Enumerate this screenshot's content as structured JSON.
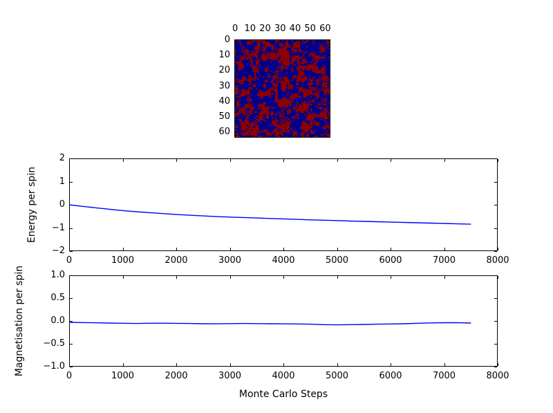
{
  "figure": {
    "background": "#ffffff",
    "text_color": "#000000"
  },
  "lattice": {
    "grid_size": 64,
    "seed": 1337,
    "smooth_passes": 2,
    "speckle": 0.06,
    "colors": {
      "spin_up": "#8c0000",
      "spin_down": "#00008c"
    },
    "xtick_vals": [
      0,
      10,
      20,
      30,
      40,
      50,
      60
    ],
    "xtick_labels": [
      "0",
      "10",
      "20",
      "30",
      "40",
      "50",
      "60"
    ],
    "ytick_vals": [
      0,
      10,
      20,
      30,
      40,
      50,
      60
    ],
    "ytick_labels": [
      "0",
      "10",
      "20",
      "30",
      "40",
      "50",
      "60"
    ]
  },
  "chart_data": [
    {
      "type": "heatmap",
      "name": "spin-lattice",
      "description": "64x64 Ising spin configuration; dark red cells = spin up, dark blue cells = spin down, clustered random pattern, roughly 50/50",
      "x_ticks": [
        0,
        10,
        20,
        30,
        40,
        50,
        60
      ],
      "y_ticks": [
        0,
        10,
        20,
        30,
        40,
        50,
        60
      ],
      "colors": {
        "up": "#8c0000",
        "down": "#00008c"
      }
    },
    {
      "type": "line",
      "name": "energy",
      "ylabel": "Energy per spin",
      "xlabel": "",
      "xlim": [
        0,
        8000
      ],
      "ylim": [
        -2,
        2
      ],
      "xtick_vals": [
        0,
        1000,
        2000,
        3000,
        4000,
        5000,
        6000,
        7000,
        8000
      ],
      "xtick_labels": [
        "0",
        "1000",
        "2000",
        "3000",
        "4000",
        "5000",
        "6000",
        "7000",
        "8000"
      ],
      "ytick_vals": [
        2,
        1,
        0,
        -1,
        -2
      ],
      "ytick_labels": [
        "2",
        "1",
        "0",
        "−1",
        "−2"
      ],
      "line_color": "#0000ff",
      "legend": null,
      "grid": false,
      "x": [
        0,
        250,
        500,
        750,
        1000,
        1250,
        1500,
        1750,
        2000,
        2250,
        2500,
        2750,
        3000,
        3250,
        3500,
        3750,
        4000,
        4250,
        4500,
        4750,
        5000,
        5250,
        5500,
        5750,
        6000,
        6250,
        6500,
        6750,
        7000,
        7250,
        7500
      ],
      "y": [
        0.0,
        -0.07,
        -0.13,
        -0.19,
        -0.25,
        -0.3,
        -0.34,
        -0.38,
        -0.42,
        -0.45,
        -0.48,
        -0.51,
        -0.53,
        -0.55,
        -0.57,
        -0.59,
        -0.61,
        -0.63,
        -0.65,
        -0.665,
        -0.68,
        -0.7,
        -0.715,
        -0.73,
        -0.75,
        -0.76,
        -0.775,
        -0.79,
        -0.805,
        -0.825,
        -0.84
      ]
    },
    {
      "type": "line",
      "name": "magnetisation",
      "ylabel": "Magnetisation per spin",
      "xlabel": "Monte Carlo Steps",
      "xlim": [
        0,
        8000
      ],
      "ylim": [
        -1,
        1
      ],
      "xtick_vals": [
        0,
        1000,
        2000,
        3000,
        4000,
        5000,
        6000,
        7000,
        8000
      ],
      "xtick_labels": [
        "0",
        "1000",
        "2000",
        "3000",
        "4000",
        "5000",
        "6000",
        "7000",
        "8000"
      ],
      "ytick_vals": [
        1.0,
        0.5,
        0.0,
        -0.5,
        -1.0
      ],
      "ytick_labels": [
        "1.0",
        "0.5",
        "0.0",
        "−0.5",
        "−1.0"
      ],
      "line_color": "#0000ff",
      "legend": null,
      "grid": false,
      "x": [
        0,
        250,
        500,
        750,
        1000,
        1250,
        1500,
        1750,
        2000,
        2250,
        2500,
        2750,
        3000,
        3250,
        3500,
        3750,
        4000,
        4250,
        4500,
        4750,
        5000,
        5250,
        5500,
        5750,
        6000,
        6250,
        6500,
        6750,
        7000,
        7250,
        7500
      ],
      "y": [
        -0.03,
        -0.035,
        -0.04,
        -0.045,
        -0.05,
        -0.055,
        -0.05,
        -0.048,
        -0.052,
        -0.055,
        -0.06,
        -0.062,
        -0.058,
        -0.055,
        -0.058,
        -0.06,
        -0.062,
        -0.065,
        -0.07,
        -0.08,
        -0.085,
        -0.08,
        -0.075,
        -0.07,
        -0.065,
        -0.06,
        -0.05,
        -0.042,
        -0.038,
        -0.036,
        -0.045
      ]
    }
  ]
}
